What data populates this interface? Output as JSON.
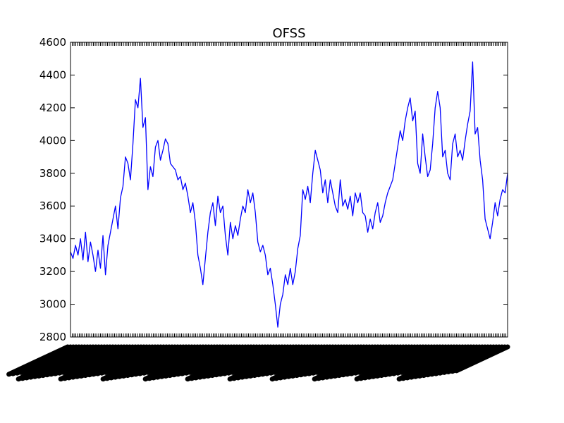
{
  "chart_data": {
    "type": "line",
    "title": "OFSS",
    "xlabel": "",
    "ylabel": "",
    "ylim": [
      2800,
      4600
    ],
    "y_ticks": [
      "2800",
      "3000",
      "3200",
      "3400",
      "3600",
      "3800",
      "4000",
      "4200",
      "4400",
      "4600"
    ],
    "x_tick_labels_legible": false,
    "grid": false,
    "line_color": "#0000ff",
    "series": [
      {
        "values": [
          3320,
          3280,
          3360,
          3300,
          3400,
          3270,
          3440,
          3260,
          3380,
          3300,
          3200,
          3330,
          3220,
          3420,
          3180,
          3360,
          3440,
          3520,
          3600,
          3460,
          3650,
          3720,
          3900,
          3860,
          3760,
          3980,
          4250,
          4200,
          4380,
          4080,
          4140,
          3700,
          3840,
          3780,
          3960,
          4000,
          3880,
          3940,
          4010,
          3980,
          3860,
          3840,
          3820,
          3760,
          3780,
          3700,
          3740,
          3660,
          3560,
          3620,
          3500,
          3300,
          3220,
          3120,
          3280,
          3440,
          3560,
          3620,
          3480,
          3660,
          3560,
          3600,
          3420,
          3300,
          3500,
          3400,
          3480,
          3420,
          3520,
          3600,
          3560,
          3700,
          3620,
          3680,
          3560,
          3380,
          3320,
          3360,
          3300,
          3180,
          3220,
          3120,
          3000,
          2860,
          3000,
          3060,
          3180,
          3120,
          3220,
          3120,
          3200,
          3340,
          3420,
          3700,
          3640,
          3720,
          3620,
          3800,
          3940,
          3880,
          3820,
          3680,
          3760,
          3620,
          3760,
          3680,
          3600,
          3560,
          3760,
          3600,
          3640,
          3580,
          3660,
          3540,
          3680,
          3620,
          3680,
          3560,
          3540,
          3440,
          3520,
          3460,
          3560,
          3620,
          3500,
          3540,
          3620,
          3680,
          3720,
          3760,
          3860,
          3960,
          4060,
          4000,
          4120,
          4200,
          4260,
          4120,
          4180,
          3860,
          3800,
          4040,
          3900,
          3780,
          3820,
          3980,
          4200,
          4300,
          4200,
          3900,
          3940,
          3800,
          3760,
          3980,
          4040,
          3900,
          3940,
          3880,
          4000,
          4100,
          4180,
          4480,
          4040,
          4080,
          3880,
          3760,
          3520,
          3460,
          3400,
          3500,
          3620,
          3540,
          3640,
          3700,
          3680,
          3800
        ]
      }
    ]
  }
}
